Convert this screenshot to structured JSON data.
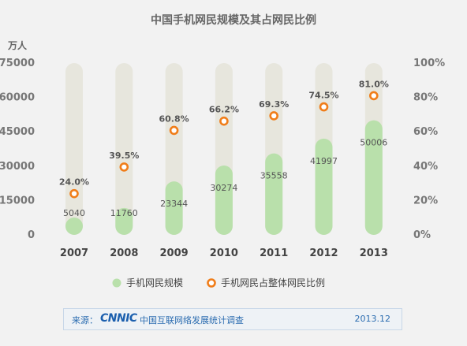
{
  "footer": {
    "source_label": "来源：",
    "logo_text": "CNNIC",
    "source_name": "中国互联网络发展统计调查",
    "date": "2013.12"
  },
  "colors": {
    "bar": "#b9e0ab",
    "track": "#e7e6dd",
    "marker": "#f07d19",
    "text": "#555555"
  },
  "chart_data": {
    "type": "bar",
    "title": "中国手机网民规模及其占网民比例",
    "ylabel_left": "万人",
    "categories": [
      "2007",
      "2008",
      "2009",
      "2010",
      "2011",
      "2012",
      "2013"
    ],
    "series": [
      {
        "name": "手机网民规模",
        "type": "bar",
        "values": [
          5040,
          11760,
          23344,
          30274,
          35558,
          41997,
          50006
        ],
        "axis": "left"
      },
      {
        "name": "手机网民占整体网民比例",
        "type": "scatter",
        "values": [
          24.0,
          39.5,
          60.8,
          66.2,
          69.3,
          74.5,
          81.0
        ],
        "value_labels": [
          "24.0%",
          "39.5%",
          "60.8%",
          "66.2%",
          "69.3%",
          "74.5%",
          "81.0%"
        ],
        "axis": "right"
      }
    ],
    "y_left": {
      "range": [
        0,
        75000
      ],
      "ticks": [
        "0",
        "15000",
        "30000",
        "45000",
        "60000",
        "75000"
      ]
    },
    "y_right": {
      "range": [
        0,
        100
      ],
      "ticks": [
        "0%",
        "20%",
        "40%",
        "60%",
        "80%",
        "100%"
      ]
    },
    "grid": false,
    "legend": "bottom"
  }
}
